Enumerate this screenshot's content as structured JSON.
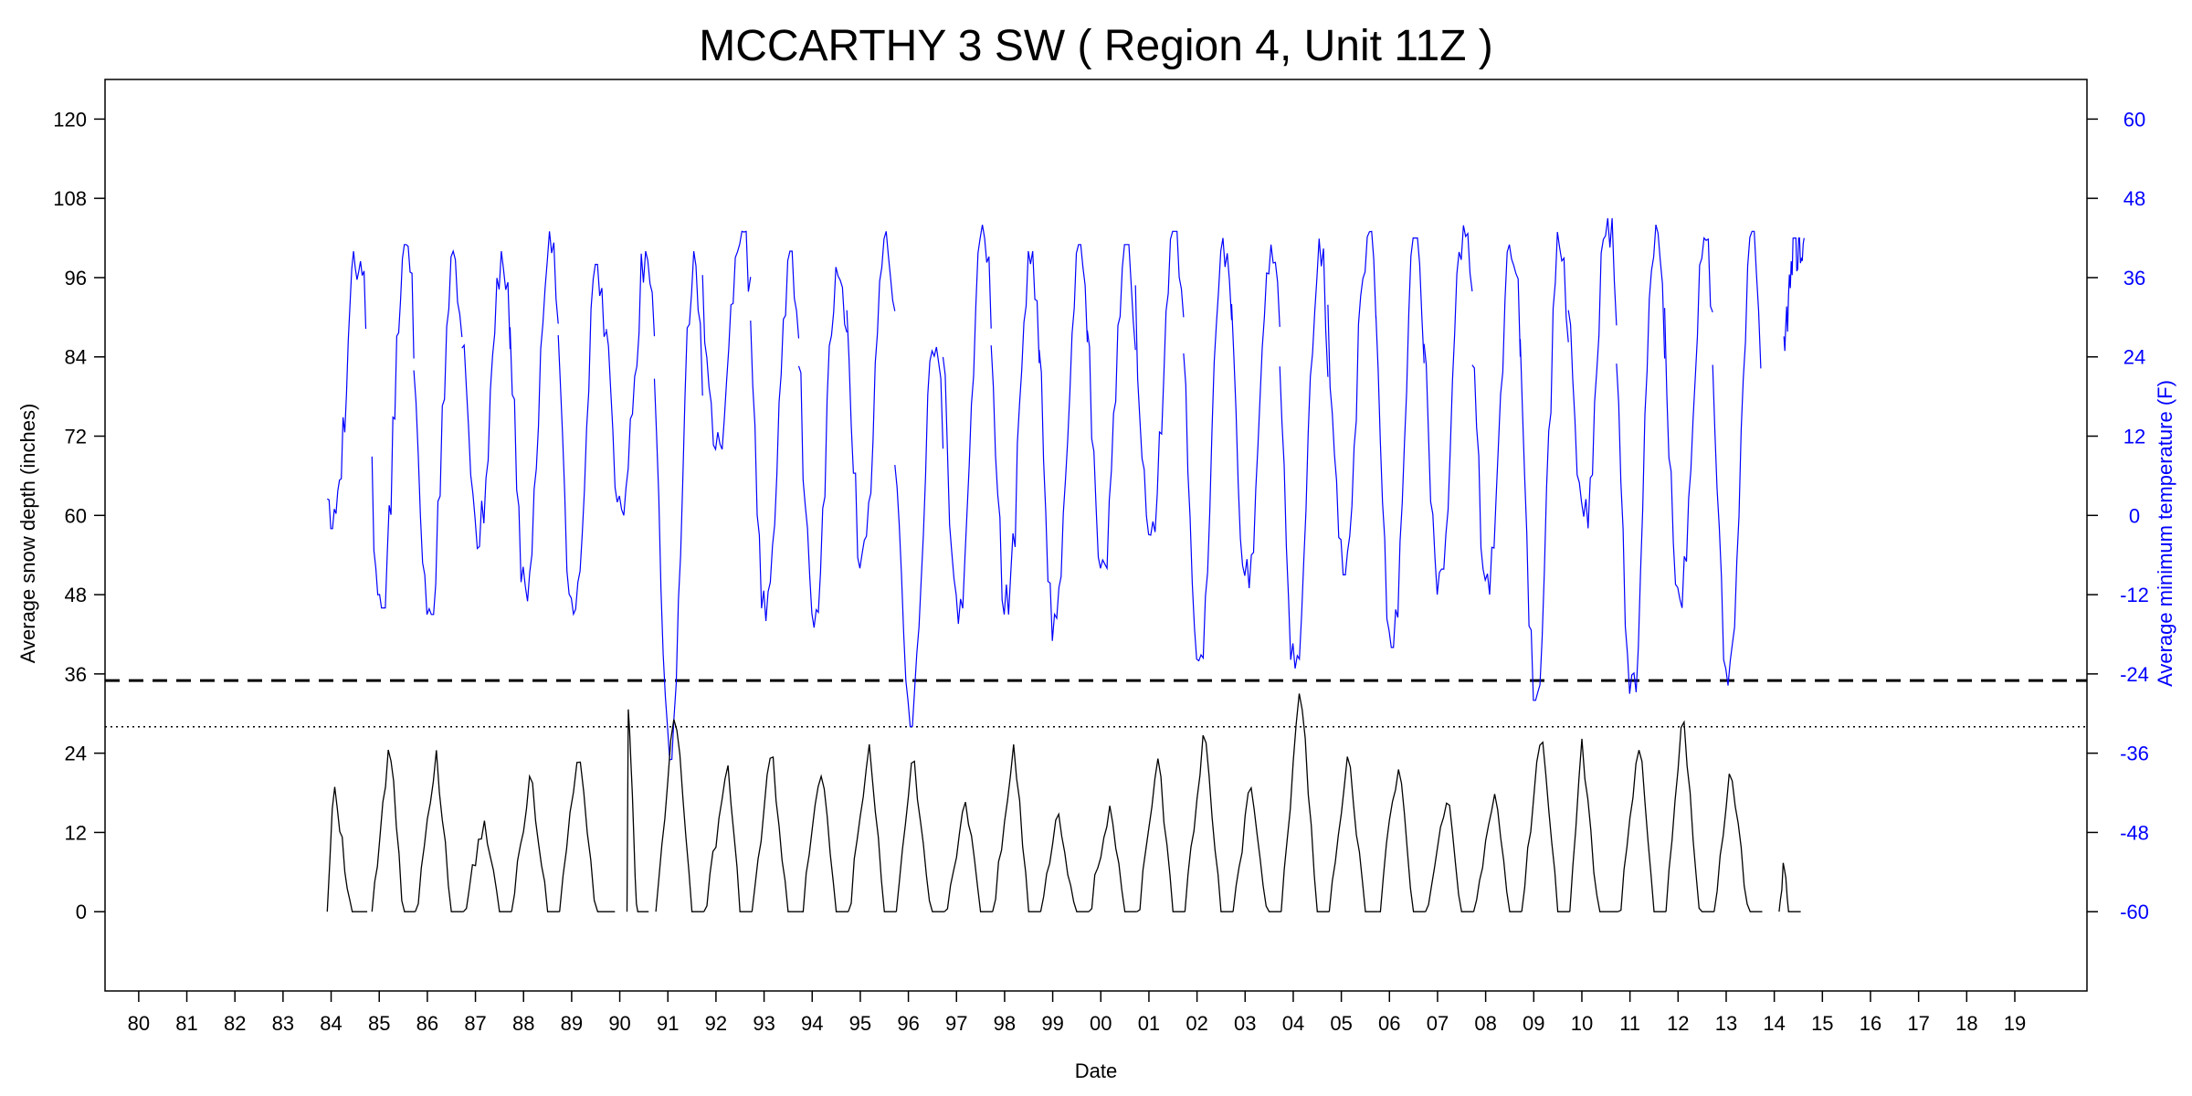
{
  "chart_data": {
    "type": "line",
    "title": "MCCARTHY 3 SW ( Region 4, Unit 11Z )",
    "xlabel": "Date",
    "ylabel_left": "Average snow depth (inches)",
    "ylabel_right": "Average minimum temperature (F)",
    "xlim": [
      1979.3,
      2020.5
    ],
    "ylim_left": [
      -12,
      126
    ],
    "ylim_right": [
      -72,
      66
    ],
    "left_ticks": [
      0,
      12,
      24,
      36,
      48,
      60,
      72,
      84,
      96,
      108,
      120
    ],
    "right_ticks": [
      -60,
      -48,
      -36,
      -24,
      -12,
      0,
      12,
      24,
      36,
      48,
      60
    ],
    "x_tick_labels": [
      "80",
      "81",
      "82",
      "83",
      "84",
      "85",
      "86",
      "87",
      "88",
      "89",
      "90",
      "91",
      "92",
      "93",
      "94",
      "95",
      "96",
      "97",
      "98",
      "99",
      "00",
      "01",
      "02",
      "03",
      "04",
      "05",
      "06",
      "07",
      "08",
      "09",
      "10",
      "11",
      "12",
      "13",
      "14",
      "15",
      "16",
      "17",
      "18",
      "19"
    ],
    "x_tick_values": [
      1980,
      1981,
      1982,
      1983,
      1984,
      1985,
      1986,
      1987,
      1988,
      1989,
      1990,
      1991,
      1992,
      1993,
      1994,
      1995,
      1996,
      1997,
      1998,
      1999,
      2000,
      2001,
      2002,
      2003,
      2004,
      2005,
      2006,
      2007,
      2008,
      2009,
      2010,
      2011,
      2012,
      2013,
      2014,
      2015,
      2016,
      2017,
      2018,
      2019
    ],
    "reference_lines": [
      {
        "style": "dashed",
        "axis": "left",
        "value": 35
      },
      {
        "style": "dotted",
        "axis": "left",
        "value": 28
      }
    ],
    "series": [
      {
        "axis": "left",
        "color": "#000000",
        "seasons": [
          {
            "start": 1983.92,
            "end": 1984.75,
            "peak": 21,
            "peak_at": 1984.05
          },
          {
            "start": 1984.85,
            "end": 1985.75,
            "peak": 26,
            "peak_at": 1985.22
          },
          {
            "start": 1985.75,
            "end": 1986.75,
            "peak": 24,
            "peak_at": 1986.18
          },
          {
            "start": 1986.75,
            "end": 1987.75,
            "peak": 14,
            "peak_at": 1987.18
          },
          {
            "start": 1987.75,
            "end": 1988.75,
            "peak": 21,
            "peak_at": 1988.15
          },
          {
            "start": 1988.75,
            "end": 1989.9,
            "peak": 26,
            "peak_at": 1989.15
          },
          {
            "start": 1990.15,
            "end": 1990.6,
            "peak": 32,
            "peak_at": 1990.18
          },
          {
            "start": 1990.75,
            "end": 1991.75,
            "peak": 32,
            "peak_at": 1991.15
          },
          {
            "start": 1991.75,
            "end": 1992.75,
            "peak": 22,
            "peak_at": 1992.25
          },
          {
            "start": 1992.75,
            "end": 1993.75,
            "peak": 25,
            "peak_at": 1993.15
          },
          {
            "start": 1993.75,
            "end": 1994.75,
            "peak": 22,
            "peak_at": 1994.2
          },
          {
            "start": 1994.75,
            "end": 1995.75,
            "peak": 25,
            "peak_at": 1995.2
          },
          {
            "start": 1995.75,
            "end": 1996.75,
            "peak": 24,
            "peak_at": 1996.1
          },
          {
            "start": 1996.75,
            "end": 1997.75,
            "peak": 17,
            "peak_at": 1997.2
          },
          {
            "start": 1997.75,
            "end": 1998.75,
            "peak": 25,
            "peak_at": 1998.2
          },
          {
            "start": 1998.75,
            "end": 1999.75,
            "peak": 15,
            "peak_at": 1999.1
          },
          {
            "start": 1999.75,
            "end": 2000.75,
            "peak": 16,
            "peak_at": 2000.2
          },
          {
            "start": 2000.75,
            "end": 2001.75,
            "peak": 23,
            "peak_at": 2001.2
          },
          {
            "start": 2001.75,
            "end": 2002.75,
            "peak": 28,
            "peak_at": 2002.15
          },
          {
            "start": 2002.75,
            "end": 2003.75,
            "peak": 19,
            "peak_at": 2003.1
          },
          {
            "start": 2003.75,
            "end": 2004.75,
            "peak": 35,
            "peak_at": 2004.15
          },
          {
            "start": 2004.75,
            "end": 2005.75,
            "peak": 24,
            "peak_at": 2005.15
          },
          {
            "start": 2005.75,
            "end": 2006.75,
            "peak": 23,
            "peak_at": 2006.2
          },
          {
            "start": 2006.75,
            "end": 2007.75,
            "peak": 18,
            "peak_at": 2007.2
          },
          {
            "start": 2007.75,
            "end": 2008.75,
            "peak": 18,
            "peak_at": 2008.2
          },
          {
            "start": 2008.75,
            "end": 2009.75,
            "peak": 28,
            "peak_at": 2009.15
          },
          {
            "start": 2009.75,
            "end": 2010.75,
            "peak": 25,
            "peak_at": 2010.0
          },
          {
            "start": 2010.75,
            "end": 2011.75,
            "peak": 26,
            "peak_at": 2011.2
          },
          {
            "start": 2011.75,
            "end": 2012.75,
            "peak": 30,
            "peak_at": 2012.1
          },
          {
            "start": 2012.75,
            "end": 2013.75,
            "peak": 22,
            "peak_at": 2013.1
          },
          {
            "start": 2014.1,
            "end": 2014.55,
            "peak": 8,
            "peak_at": 2014.2
          }
        ]
      },
      {
        "axis": "right",
        "color": "#0000ff",
        "seasons": [
          {
            "start": 1983.92,
            "end": 1984.72,
            "min": -2,
            "max": 40
          },
          {
            "start": 1984.85,
            "end": 1985.72,
            "min": -14,
            "max": 41
          },
          {
            "start": 1985.72,
            "end": 1986.72,
            "min": -15,
            "max": 40
          },
          {
            "start": 1986.72,
            "end": 1987.72,
            "min": -5,
            "max": 40
          },
          {
            "start": 1987.72,
            "end": 1988.72,
            "min": -13,
            "max": 43
          },
          {
            "start": 1988.72,
            "end": 1989.72,
            "min": -17,
            "max": 38
          },
          {
            "start": 1989.72,
            "end": 1990.72,
            "min": 0,
            "max": 40
          },
          {
            "start": 1990.72,
            "end": 1991.72,
            "min": -37,
            "max": 40
          },
          {
            "start": 1991.72,
            "end": 1992.72,
            "min": 10,
            "max": 43
          },
          {
            "start": 1992.72,
            "end": 1993.72,
            "min": -16,
            "max": 40
          },
          {
            "start": 1993.72,
            "end": 1994.72,
            "min": -17,
            "max": 40
          },
          {
            "start": 1994.72,
            "end": 1995.72,
            "min": -8,
            "max": 43
          },
          {
            "start": 1995.72,
            "end": 1996.72,
            "min": -32,
            "max": 27
          },
          {
            "start": 1996.72,
            "end": 1997.72,
            "min": -17,
            "max": 44
          },
          {
            "start": 1997.72,
            "end": 1998.72,
            "min": -15,
            "max": 40
          },
          {
            "start": 1998.72,
            "end": 1999.72,
            "min": -19,
            "max": 41
          },
          {
            "start": 1999.72,
            "end": 2000.72,
            "min": -8,
            "max": 41
          },
          {
            "start": 2000.72,
            "end": 2001.72,
            "min": -3,
            "max": 43
          },
          {
            "start": 2001.72,
            "end": 2002.72,
            "min": -22,
            "max": 42
          },
          {
            "start": 2002.72,
            "end": 2003.72,
            "min": -11,
            "max": 41
          },
          {
            "start": 2003.72,
            "end": 2004.72,
            "min": -25,
            "max": 42
          },
          {
            "start": 2004.72,
            "end": 2005.72,
            "min": -9,
            "max": 43
          },
          {
            "start": 2005.72,
            "end": 2006.72,
            "min": -20,
            "max": 42
          },
          {
            "start": 2006.72,
            "end": 2007.72,
            "min": -12,
            "max": 44
          },
          {
            "start": 2007.72,
            "end": 2008.72,
            "min": -12,
            "max": 41
          },
          {
            "start": 2008.72,
            "end": 2009.72,
            "min": -28,
            "max": 43
          },
          {
            "start": 2009.72,
            "end": 2010.72,
            "min": -2,
            "max": 45
          },
          {
            "start": 2010.72,
            "end": 2011.72,
            "min": -27,
            "max": 44
          },
          {
            "start": 2011.72,
            "end": 2012.72,
            "min": -14,
            "max": 42
          },
          {
            "start": 2012.72,
            "end": 2013.72,
            "min": -27,
            "max": 43
          },
          {
            "start": 2014.2,
            "end": 2014.62,
            "min": 24,
            "max": 42
          }
        ]
      }
    ]
  }
}
